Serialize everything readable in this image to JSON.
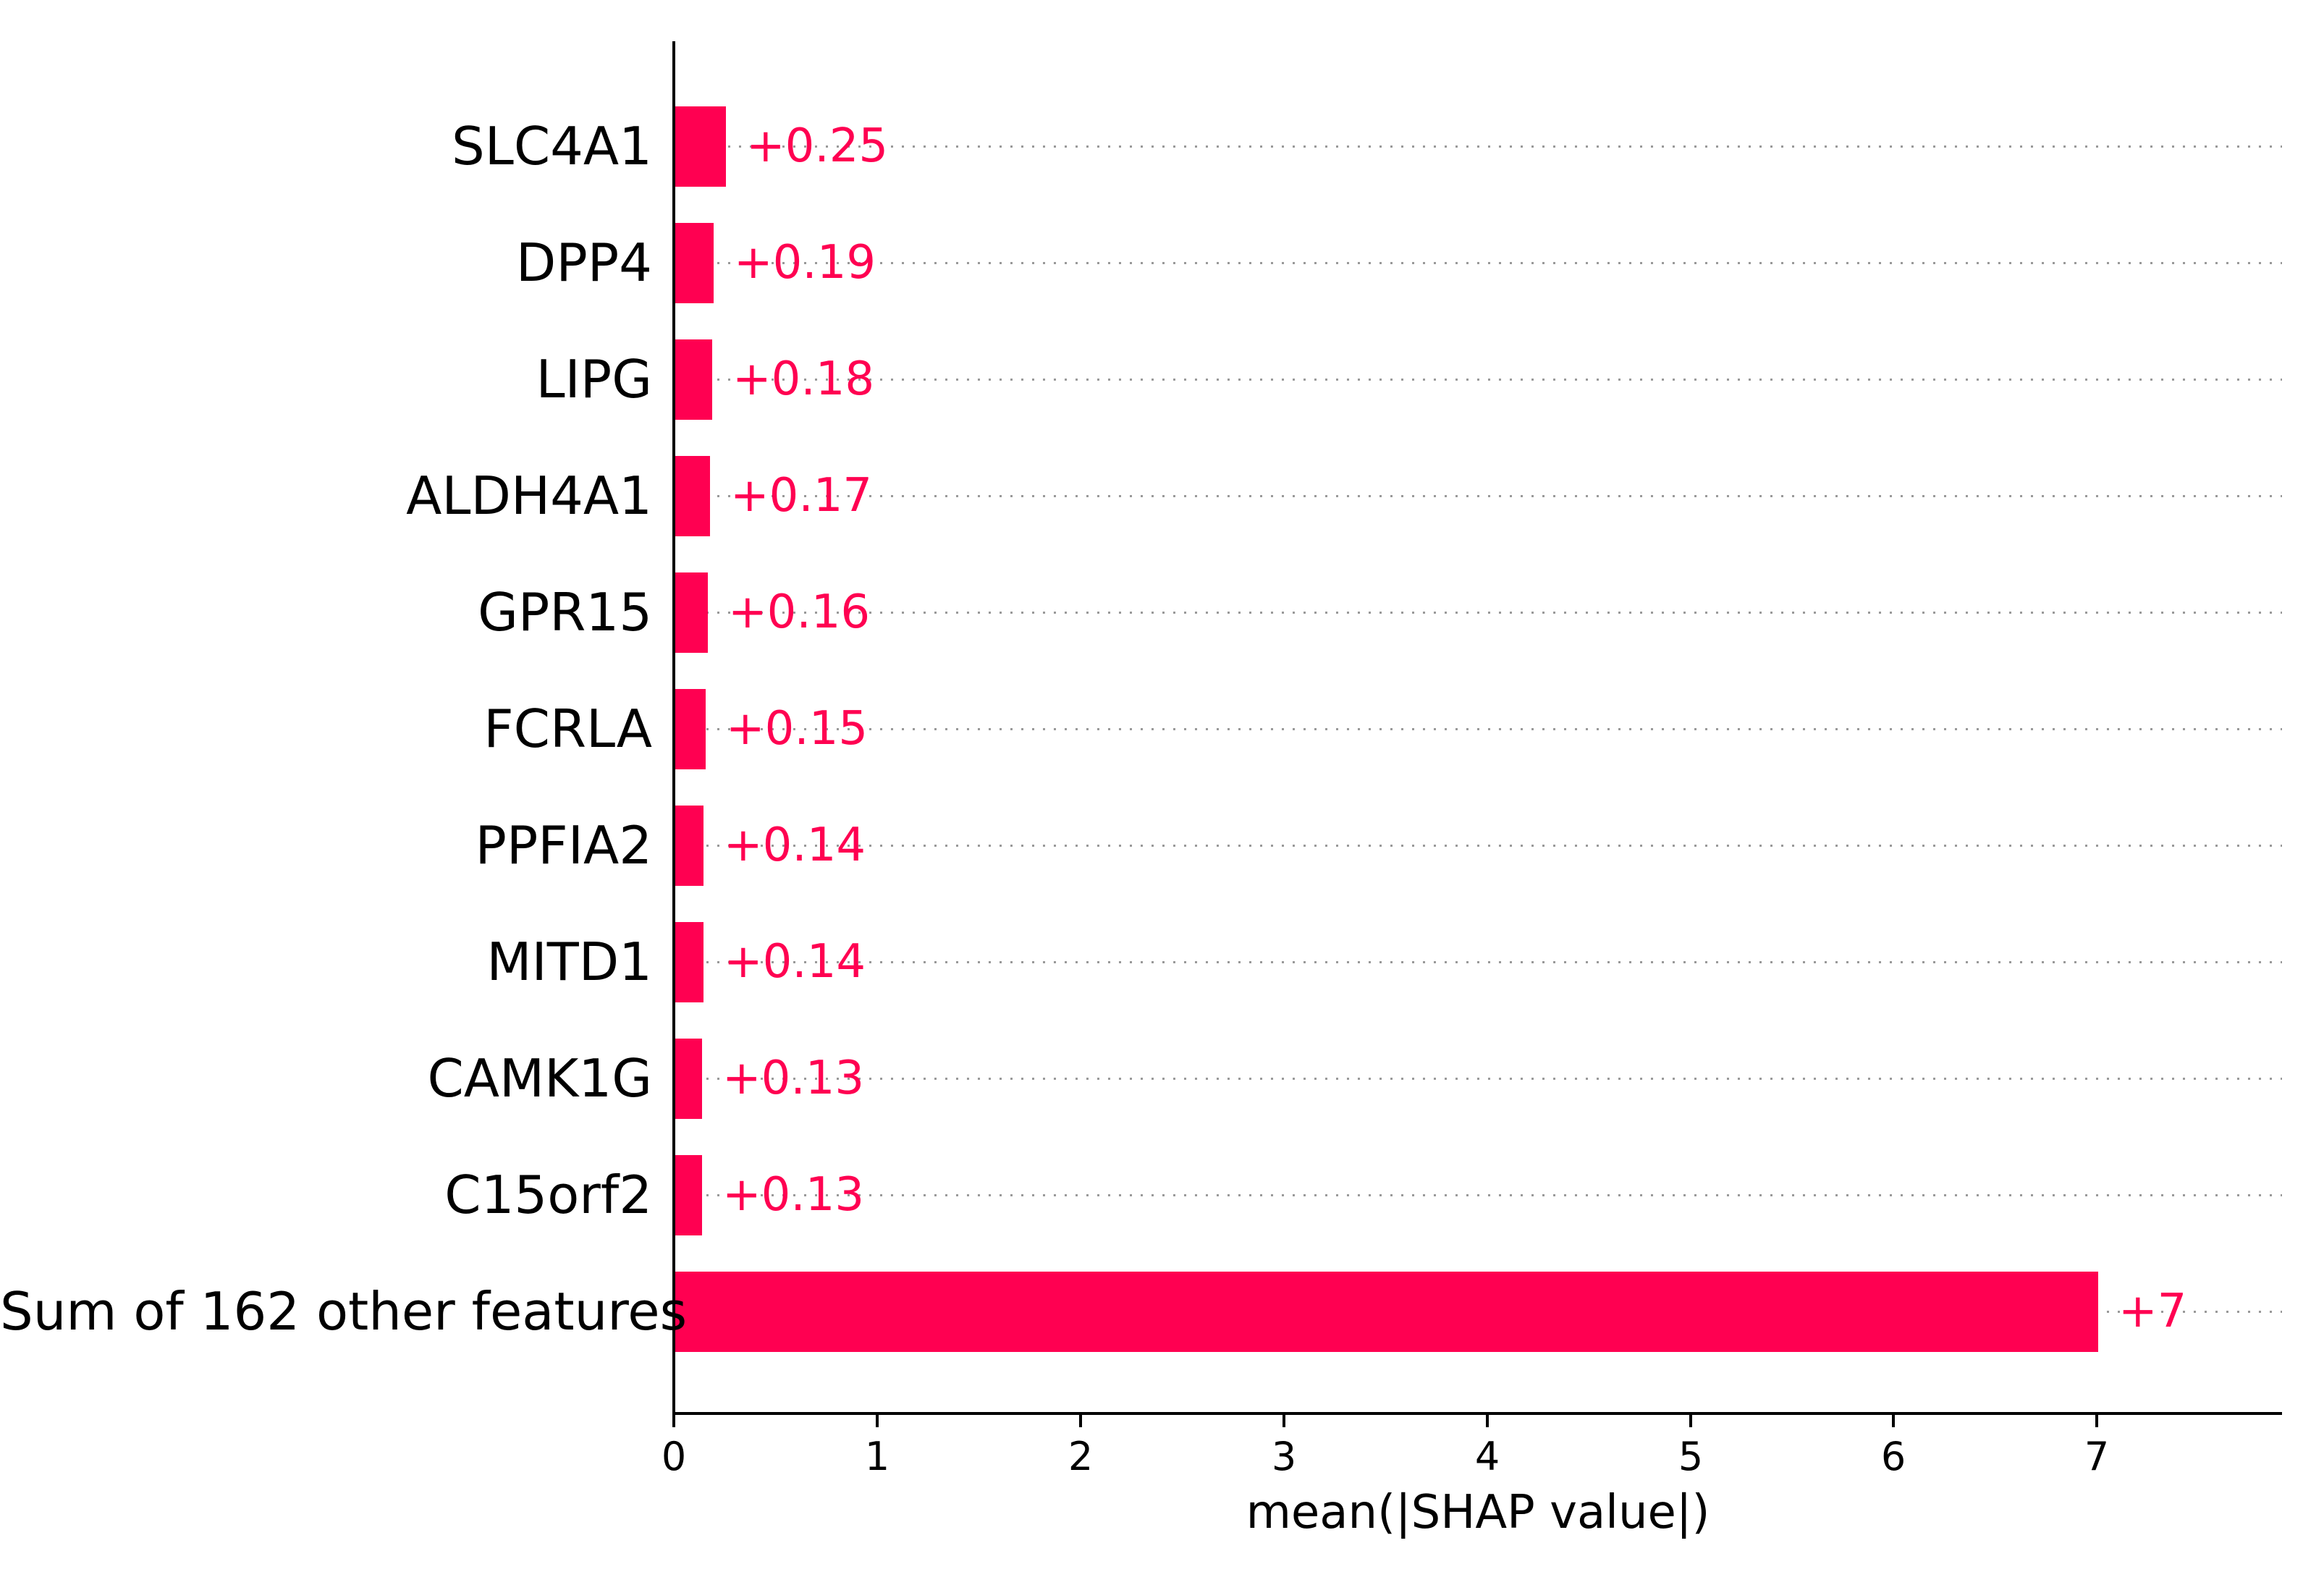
{
  "chart_data": {
    "type": "bar",
    "orientation": "horizontal",
    "title": "",
    "xlabel": "mean(|SHAP value|)",
    "ylabel": "",
    "categories": [
      "SLC4A1",
      "DPP4",
      "LIPG",
      "ALDH4A1",
      "GPR15",
      "FCRLA",
      "PPFIA2",
      "MITD1",
      "CAMK1G",
      "C15orf2",
      "Sum of 162 other features"
    ],
    "values": [
      0.25,
      0.19,
      0.18,
      0.17,
      0.16,
      0.15,
      0.14,
      0.14,
      0.13,
      0.13,
      7.0
    ],
    "value_labels": [
      "+0.25",
      "+0.19",
      "+0.18",
      "+0.17",
      "+0.16",
      "+0.15",
      "+0.14",
      "+0.14",
      "+0.13",
      "+0.13",
      "+7"
    ],
    "xticks": [
      0,
      1,
      2,
      3,
      4,
      5,
      6,
      7
    ],
    "xlim": [
      0,
      7.91
    ],
    "grid": "horizontal dotted lines, one per category",
    "legend_position": "none",
    "colors": {
      "bar": "#ff0051",
      "value_label": "#ff0051",
      "gridline": "#999999",
      "axis": "#000000",
      "category_label": "#000000"
    }
  }
}
